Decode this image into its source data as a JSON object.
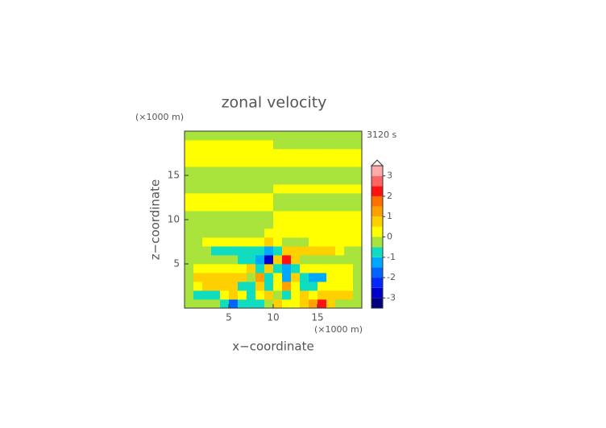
{
  "chart_data": {
    "type": "contour",
    "title": "zonal velocity",
    "time_label": "3120 s",
    "x_label": "x−coordinate",
    "y_label": "z−coordinate",
    "x_unit": "(×1000 m)",
    "y_unit": "(×1000 m)",
    "xlim": [
      0,
      20
    ],
    "ylim": [
      0,
      20
    ],
    "xticks": [
      5,
      10,
      15
    ],
    "yticks": [
      5,
      10,
      15
    ],
    "x": [
      0.5,
      1.5,
      2.5,
      3.5,
      4.5,
      5.5,
      6.5,
      7.5,
      8.5,
      9.5,
      10.5,
      11.5,
      12.5,
      13.5,
      14.5,
      15.5,
      16.5,
      17.5,
      18.5,
      19.5
    ],
    "y": [
      0.5,
      1.5,
      2.5,
      3.5,
      4.5,
      5.5,
      6.5,
      7.5,
      8.5,
      9.5,
      10.5,
      11.5,
      12.5,
      13.5,
      14.5,
      15.5,
      16.5,
      17.5,
      18.5,
      19.5
    ],
    "values": [
      [
        -0.2,
        -0.2,
        -0.2,
        -0.2,
        -0.7,
        -1.7,
        -0.7,
        -0.7,
        -0.7,
        -0.3,
        0.7,
        0.3,
        0.3,
        0.7,
        1.3,
        2.3,
        0.7,
        -0.2,
        -0.2,
        -0.2
      ],
      [
        -0.2,
        -0.7,
        -0.7,
        -0.7,
        0.3,
        0.7,
        0.3,
        -0.7,
        0.3,
        0.7,
        -0.3,
        -0.7,
        0.3,
        0.7,
        0.3,
        0.7,
        0.7,
        0.7,
        0.7,
        -0.2
      ],
      [
        -0.2,
        0.3,
        0.7,
        0.7,
        0.7,
        0.7,
        -0.7,
        -0.7,
        0.7,
        -0.7,
        0.3,
        1.3,
        0.3,
        -0.7,
        -0.7,
        0.3,
        0.3,
        0.2,
        0.2,
        -0.2
      ],
      [
        -0.2,
        0.7,
        0.7,
        0.7,
        0.7,
        0.7,
        0.7,
        -0.3,
        1.3,
        -0.7,
        0.2,
        -1.3,
        0.7,
        -0.7,
        -1.3,
        -1.3,
        0.3,
        0.2,
        0.2,
        -0.2
      ],
      [
        -0.2,
        0.2,
        0.3,
        0.3,
        0.3,
        0.3,
        0.3,
        0.7,
        -0.7,
        0.5,
        -0.7,
        -1.3,
        -0.7,
        0.3,
        0.3,
        0.2,
        0.2,
        0.2,
        0.2,
        -0.2
      ],
      [
        -0.2,
        -0.2,
        -0.2,
        -0.2,
        -0.2,
        -0.2,
        -0.7,
        -0.7,
        -1.3,
        -2.6,
        0.7,
        2.3,
        0.7,
        -0.2,
        -0.2,
        -0.2,
        -0.2,
        -0.2,
        -0.2,
        -0.2
      ],
      [
        -0.2,
        -0.2,
        -0.2,
        -0.7,
        -0.7,
        -0.7,
        -0.7,
        -0.7,
        -0.7,
        -1.2,
        -0.7,
        0.7,
        0.7,
        0.7,
        0.7,
        0.7,
        0.7,
        0.3,
        -0.2,
        -0.2
      ],
      [
        -0.2,
        -0.2,
        0.2,
        0.2,
        0.2,
        0.2,
        0.2,
        0.2,
        0.2,
        0.7,
        0.2,
        -0.2,
        -0.2,
        -0.2,
        0.2,
        0.2,
        0.2,
        0.2,
        0.2,
        0.2
      ],
      [
        -0.2,
        -0.2,
        -0.2,
        -0.2,
        -0.2,
        -0.2,
        -0.2,
        -0.2,
        -0.2,
        0.2,
        0.2,
        0.2,
        0.2,
        0.2,
        0.2,
        0.2,
        0.2,
        0.2,
        0.2,
        0.2
      ],
      [
        -0.2,
        -0.2,
        -0.2,
        -0.2,
        -0.2,
        -0.2,
        -0.2,
        -0.2,
        -0.2,
        -0.2,
        0.2,
        0.2,
        0.2,
        0.2,
        0.2,
        0.2,
        0.2,
        0.2,
        0.2,
        0.2
      ],
      [
        -0.2,
        -0.2,
        -0.2,
        -0.2,
        -0.2,
        -0.2,
        -0.2,
        -0.2,
        -0.2,
        -0.2,
        0.2,
        0.2,
        0.2,
        0.2,
        0.2,
        0.2,
        0.2,
        0.2,
        0.2,
        0.2
      ],
      [
        0.2,
        0.2,
        0.2,
        0.2,
        0.2,
        0.2,
        0.2,
        0.2,
        0.2,
        0.2,
        -0.2,
        -0.2,
        -0.2,
        -0.2,
        -0.2,
        -0.2,
        -0.2,
        -0.2,
        -0.2,
        -0.2
      ],
      [
        0.2,
        0.2,
        0.2,
        0.2,
        0.2,
        0.2,
        0.2,
        0.2,
        0.2,
        0.2,
        -0.2,
        -0.2,
        -0.2,
        -0.2,
        -0.2,
        -0.2,
        -0.2,
        -0.2,
        -0.2,
        -0.2
      ],
      [
        -0.2,
        -0.2,
        -0.2,
        -0.2,
        -0.2,
        -0.2,
        -0.2,
        -0.2,
        -0.2,
        -0.2,
        0.2,
        0.2,
        0.2,
        0.2,
        0.2,
        0.2,
        0.2,
        0.2,
        0.2,
        0.2
      ],
      [
        -0.2,
        -0.2,
        -0.2,
        -0.2,
        -0.2,
        -0.2,
        -0.2,
        -0.2,
        -0.2,
        -0.2,
        -0.2,
        -0.2,
        -0.2,
        -0.2,
        -0.2,
        -0.2,
        -0.2,
        -0.2,
        -0.2,
        -0.2
      ],
      [
        -0.2,
        -0.2,
        -0.2,
        -0.2,
        -0.2,
        -0.2,
        -0.2,
        -0.2,
        -0.2,
        -0.2,
        -0.2,
        -0.2,
        -0.2,
        -0.2,
        -0.2,
        -0.2,
        -0.2,
        -0.2,
        -0.2,
        -0.2
      ],
      [
        0.2,
        0.2,
        0.2,
        0.2,
        0.2,
        0.2,
        0.2,
        0.2,
        0.2,
        0.2,
        0.2,
        0.2,
        0.2,
        0.2,
        0.2,
        0.2,
        0.2,
        0.2,
        0.2,
        0.2
      ],
      [
        0.2,
        0.2,
        0.2,
        0.2,
        0.2,
        0.2,
        0.2,
        0.2,
        0.2,
        0.2,
        0.2,
        0.2,
        0.2,
        0.2,
        0.2,
        0.2,
        0.2,
        0.2,
        0.2,
        0.2
      ],
      [
        0.2,
        0.2,
        0.2,
        0.2,
        0.2,
        0.2,
        0.2,
        0.2,
        0.2,
        0.2,
        -0.2,
        -0.2,
        -0.2,
        -0.2,
        -0.2,
        -0.2,
        -0.2,
        -0.2,
        -0.2,
        -0.2
      ],
      [
        -0.2,
        -0.2,
        -0.2,
        -0.2,
        -0.2,
        -0.2,
        -0.2,
        -0.2,
        -0.2,
        -0.2,
        -0.2,
        -0.2,
        -0.2,
        -0.2,
        -0.2,
        -0.2,
        -0.2,
        -0.2,
        -0.2,
        -0.2
      ]
    ],
    "levels": [
      -3.5,
      -3,
      -2.5,
      -2,
      -1.5,
      -1,
      -0.5,
      0,
      0.5,
      1,
      1.5,
      2,
      2.5,
      3,
      3.5
    ],
    "colors": [
      "#000080",
      "#0000c8",
      "#0028ff",
      "#0064ff",
      "#00a8ff",
      "#10dcc0",
      "#a8e43c",
      "#ffff00",
      "#ffd000",
      "#ffa000",
      "#ff7000",
      "#ff1010",
      "#ff6464",
      "#ffaaaa"
    ],
    "extend_color": "#fff0f0",
    "colorbar_ticks": [
      -3,
      -2,
      -1,
      0,
      1,
      2,
      3
    ]
  }
}
